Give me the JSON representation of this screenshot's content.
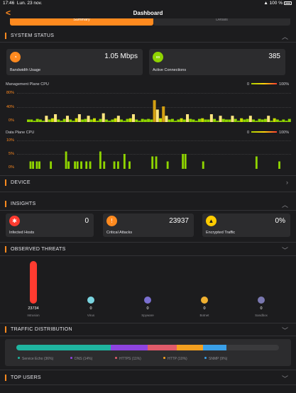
{
  "status_bar": {
    "time": "17:46",
    "date": "Lun. 23 nov.",
    "battery": "100 %"
  },
  "header": {
    "back_label": "<",
    "title": "Dashboard"
  },
  "tabs": [
    {
      "label": "Summary"
    },
    {
      "label": "Details"
    }
  ],
  "sections": {
    "system_status": "SYSTEM STATUS",
    "device": "DEVICE",
    "insights": "INSIGHTS",
    "observed_threats": "OBSERVED THREATS",
    "traffic_distribution": "TRAFFIC DISTRIBUTION",
    "top_users": "TOP USERS"
  },
  "system_status": {
    "bandwidth": {
      "value": "1.05 Mbps",
      "label": "Bandwidth Usage",
      "icon": "gauge-icon",
      "color": "#ff8a1f"
    },
    "connections": {
      "value": "385",
      "label": "Active Connections",
      "icon": "link-icon",
      "color": "#8fd400"
    }
  },
  "charts": {
    "legend_min": "0",
    "legend_max": "100%",
    "management": {
      "title": "Management Plane CPU",
      "ticks": [
        "80%",
        "40%",
        "0%"
      ]
    },
    "data_plane": {
      "title": "Data Plane CPU",
      "ticks": [
        "10%",
        "5%",
        "0%"
      ]
    }
  },
  "chart_data": [
    {
      "type": "bar",
      "title": "Management Plane CPU",
      "ylim": [
        0,
        100
      ],
      "values": [
        8,
        8,
        4,
        10,
        8,
        4,
        20,
        8,
        12,
        25,
        8,
        4,
        10,
        20,
        8,
        4,
        12,
        25,
        8,
        10,
        20,
        8,
        12,
        4,
        10,
        28,
        8,
        4,
        8,
        12,
        20,
        8,
        4,
        10,
        12,
        25,
        8,
        4,
        10,
        8,
        10,
        8,
        70,
        40,
        12,
        50,
        20,
        8,
        10,
        4,
        8,
        12,
        8,
        25,
        10,
        8,
        4,
        10,
        12,
        8,
        8,
        25,
        10,
        4,
        20,
        10,
        8,
        8,
        20,
        10,
        4,
        12,
        8,
        10,
        20,
        8,
        4,
        10,
        8,
        10,
        20,
        4,
        12,
        8,
        4,
        8,
        4,
        10
      ],
      "colors": [
        "#8fd400",
        "#ffe680",
        "#c8e000",
        "#d4a012"
      ]
    },
    {
      "type": "bar",
      "title": "Data Plane CPU",
      "ylim": [
        0,
        12
      ],
      "values": [
        0,
        0,
        3,
        0,
        3,
        0,
        0,
        3,
        0,
        3,
        0,
        0,
        0,
        0,
        0,
        0,
        0,
        0,
        3,
        0,
        0,
        0,
        0,
        0,
        0,
        0,
        0,
        0,
        0,
        0,
        7,
        0,
        3,
        0,
        0,
        0,
        0,
        3,
        0,
        3,
        0,
        0,
        3,
        0,
        0,
        0,
        3,
        0,
        0,
        3,
        0,
        0,
        0,
        0,
        0,
        0,
        0,
        7,
        0,
        0,
        3,
        0,
        0,
        0,
        0,
        0,
        0,
        0,
        3,
        0,
        0,
        3,
        0,
        0,
        0,
        0,
        6,
        0,
        0,
        0,
        3,
        0,
        0,
        0,
        0,
        0,
        0,
        0,
        0,
        0,
        0,
        0,
        0,
        0,
        0,
        0,
        0,
        0,
        5,
        0,
        0,
        5,
        0,
        0,
        0,
        0,
        0,
        0,
        0,
        0,
        3,
        0,
        0,
        0,
        0,
        0,
        0,
        0,
        0,
        0,
        0,
        0,
        6,
        0,
        6,
        0,
        0,
        0,
        0,
        0,
        0,
        0,
        0,
        0,
        0,
        0,
        0,
        0,
        3,
        0,
        0,
        0,
        0,
        0,
        0,
        0,
        0,
        0,
        0,
        0,
        0,
        0,
        0,
        0,
        0,
        0,
        0,
        0,
        0,
        0,
        0,
        0,
        0,
        0,
        0,
        0,
        0,
        0,
        0,
        0,
        0,
        0,
        0,
        0,
        0,
        0,
        0,
        0,
        0,
        0,
        5,
        0,
        0,
        0,
        0,
        0,
        0,
        0,
        0,
        0,
        0,
        0,
        0,
        0,
        0,
        0,
        0,
        0,
        3,
        0,
        0,
        0,
        0,
        0,
        0,
        0,
        0,
        0
      ],
      "color": "#8fd400"
    }
  ],
  "insights": {
    "infected": {
      "value": "0",
      "label": "Infected Hosts",
      "icon": "bug-icon",
      "color": "#ff3b30"
    },
    "critical": {
      "value": "23937",
      "label": "Critical Attacks",
      "icon": "alert-icon",
      "color": "#ff8a1f"
    },
    "encrypted": {
      "value": "0%",
      "label": "Encrypted Traffic",
      "icon": "warning-icon",
      "color": "#ffcc00"
    }
  },
  "threats": [
    {
      "value": "23734",
      "label": "Intrusion",
      "color": "#ff3b30",
      "level": 1.0
    },
    {
      "value": "0",
      "label": "Virus",
      "color": "#7ad4e0",
      "level": 0
    },
    {
      "value": "0",
      "label": "Spyware",
      "color": "#7a6fd0",
      "level": 0
    },
    {
      "value": "0",
      "label": "Botnet",
      "color": "#f0b030",
      "level": 0
    },
    {
      "value": "0",
      "label": "Sandbox",
      "color": "#7a78b0",
      "level": 0
    }
  ],
  "traffic": {
    "segments": [
      {
        "label": "Service Echo",
        "pct": "(36%)",
        "share": 0.36,
        "color": "#1fb5a0"
      },
      {
        "label": "DNS",
        "pct": "(14%)",
        "share": 0.14,
        "color": "#8e44e0"
      },
      {
        "label": "HTTPS",
        "pct": "(11%)",
        "share": 0.11,
        "color": "#e05b6a"
      },
      {
        "label": "HTTP",
        "pct": "(10%)",
        "share": 0.1,
        "color": "#f4a020"
      },
      {
        "label": "SNMP",
        "pct": "(9%)",
        "share": 0.09,
        "color": "#3aa0e8"
      }
    ]
  }
}
